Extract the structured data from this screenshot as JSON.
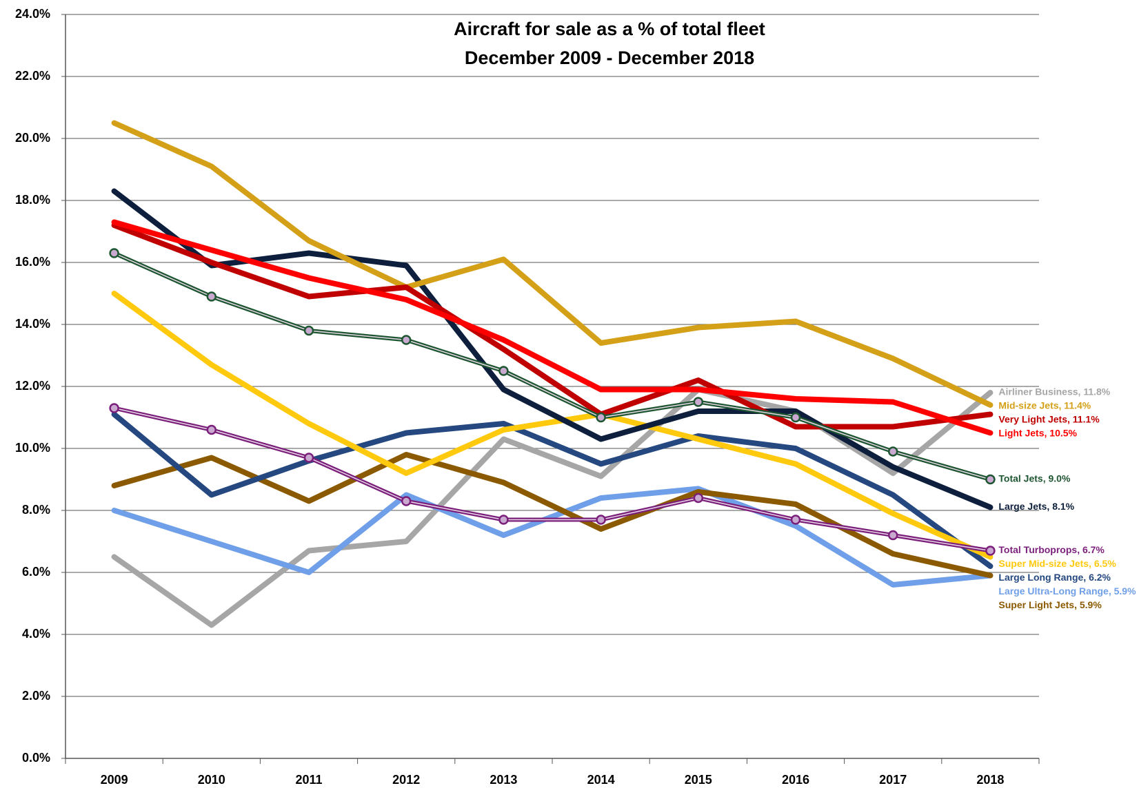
{
  "chart_data": {
    "type": "line",
    "title": "Aircraft for sale as a % of total fleet",
    "subtitle": "December 2009 - December 2018",
    "categories": [
      "2009",
      "2010",
      "2011",
      "2012",
      "2013",
      "2014",
      "2015",
      "2016",
      "2017",
      "2018"
    ],
    "ylim": [
      0,
      24
    ],
    "yticks": [
      {
        "value": 0,
        "label": "0.0%"
      },
      {
        "value": 2,
        "label": "2.0%"
      },
      {
        "value": 4,
        "label": "4.0%"
      },
      {
        "value": 6,
        "label": "6.0%"
      },
      {
        "value": 8,
        "label": "8.0%"
      },
      {
        "value": 10,
        "label": "10.0%"
      },
      {
        "value": 12,
        "label": "12.0%"
      },
      {
        "value": 14,
        "label": "14.0%"
      },
      {
        "value": 16,
        "label": "16.0%"
      },
      {
        "value": 18,
        "label": "18.0%"
      },
      {
        "value": 20,
        "label": "20.0%"
      },
      {
        "value": 22,
        "label": "22.0%"
      },
      {
        "value": 24,
        "label": "24.0%"
      }
    ],
    "grid": true,
    "series": [
      {
        "name": "Airliner Business, 11.8%",
        "color": "#a6a6a6",
        "values": [
          6.5,
          4.3,
          6.7,
          7.0,
          10.3,
          9.1,
          11.9,
          11.2,
          9.2,
          11.8
        ]
      },
      {
        "name": "Large Ultra-Long Range, 5.9%",
        "color": "#6f9fe8",
        "values": [
          8.0,
          7.0,
          6.0,
          8.5,
          7.2,
          8.4,
          8.7,
          7.5,
          5.6,
          5.9
        ]
      },
      {
        "name": "Super Light Jets, 5.9%",
        "color": "#8b5a00",
        "values": [
          8.8,
          9.7,
          8.3,
          9.8,
          8.9,
          7.4,
          8.6,
          8.2,
          6.6,
          5.9
        ]
      },
      {
        "name": "Large Long Range, 6.2%",
        "color": "#24487f",
        "values": [
          11.1,
          8.5,
          9.6,
          10.5,
          10.8,
          9.5,
          10.4,
          10.0,
          8.5,
          6.2
        ]
      },
      {
        "name": "Super Mid-size Jets, 6.5%",
        "color": "#ffc90e",
        "values": [
          15.0,
          12.7,
          10.8,
          9.2,
          10.6,
          11.1,
          10.3,
          9.5,
          7.9,
          6.5
        ]
      },
      {
        "name": "Large Jets, 8.1%",
        "color": "#0d1f3c",
        "values": [
          18.3,
          15.9,
          16.3,
          15.9,
          11.9,
          10.3,
          11.2,
          11.2,
          9.4,
          8.1
        ]
      },
      {
        "name": "Mid-size Jets, 11.4%",
        "color": "#d4a017",
        "values": [
          20.5,
          19.1,
          16.7,
          15.2,
          16.1,
          13.4,
          13.9,
          14.1,
          12.9,
          11.4
        ]
      },
      {
        "name": "Very Light Jets, 11.1%",
        "color": "#c00000",
        "values": [
          17.2,
          16.0,
          14.9,
          15.2,
          13.2,
          11.1,
          12.2,
          10.7,
          10.7,
          11.1
        ]
      },
      {
        "name": "Light Jets, 10.5%",
        "color": "#ff0000",
        "values": [
          17.3,
          16.4,
          15.5,
          14.8,
          13.5,
          11.9,
          11.9,
          11.6,
          11.5,
          10.5
        ]
      },
      {
        "name": "Total Turboprops, 6.7%",
        "color": "#7b1f7b",
        "markers": true,
        "values": [
          11.3,
          10.6,
          9.7,
          8.3,
          7.7,
          7.7,
          8.4,
          7.7,
          7.2,
          6.7
        ]
      },
      {
        "name": "Total Jets, 9.0%",
        "color": "#1e5631",
        "markers": true,
        "values": [
          16.3,
          14.9,
          13.8,
          13.5,
          12.5,
          11.0,
          11.5,
          11.0,
          9.9,
          9.0
        ]
      }
    ]
  }
}
